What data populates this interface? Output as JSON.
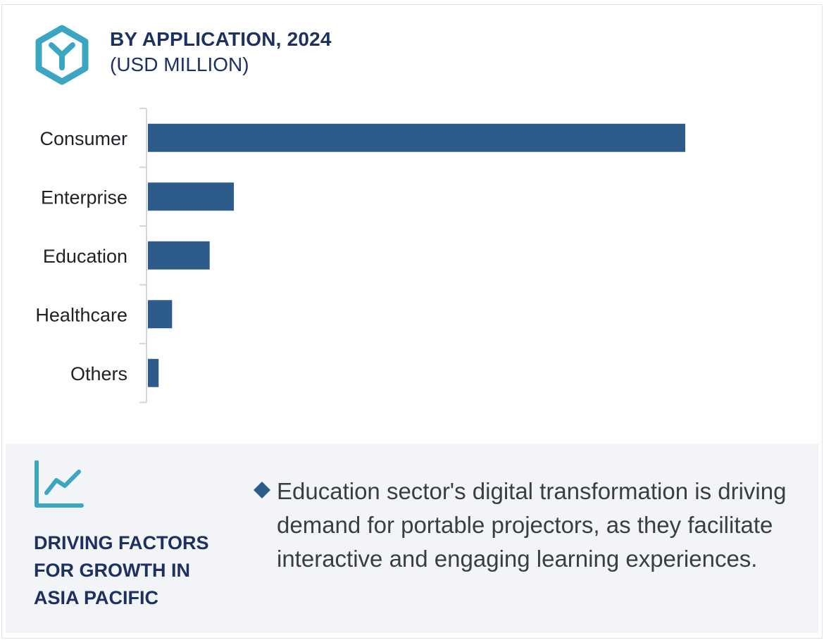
{
  "header": {
    "title": "BY APPLICATION, 2024",
    "subtitle": "(USD MILLION)",
    "icon": "hexagon-y-logo-icon",
    "accent_color": "#3aa6c2"
  },
  "chart_data": {
    "type": "bar",
    "orientation": "horizontal",
    "title": "BY APPLICATION, 2024",
    "subtitle": "(USD MILLION)",
    "categories": [
      "Consumer",
      "Enterprise",
      "Education",
      "Healthcare",
      "Others"
    ],
    "values": [
      100,
      16,
      11.5,
      4.5,
      2
    ],
    "value_scale": "relative (no axis ticks shown)",
    "bar_color": "#2d5c8a",
    "grid": false,
    "legend": "none"
  },
  "footer": {
    "factors_title": "DRIVING FACTORS FOR GROWTH IN ASIA PACIFIC",
    "trend_icon": "line-chart-trend-icon",
    "bullet_icon": "diamond-bullet-icon",
    "bullet_text": "Education sector's digital transformation is driving demand for portable projectors, as they facilitate interactive and engaging learning experiences."
  }
}
